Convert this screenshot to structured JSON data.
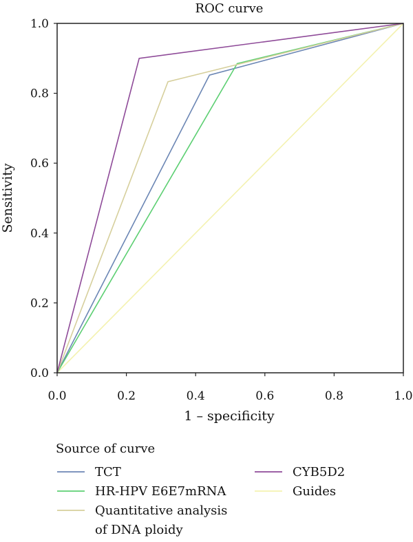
{
  "chart_data": {
    "type": "line",
    "title": "ROC curve",
    "xlabel": "1 – specificity",
    "ylabel": "Sensitivity",
    "xlim": [
      0,
      1
    ],
    "ylim": [
      0,
      1
    ],
    "xticks": [
      "0.0",
      "0.2",
      "0.4",
      "0.6",
      "0.8",
      "1.0"
    ],
    "yticks": [
      "0.0",
      "0.2",
      "0.4",
      "0.6",
      "0.8",
      "1.0"
    ],
    "grid": false,
    "legend": {
      "title": "Source of curve",
      "placement": "bottom"
    },
    "series": [
      {
        "name": "TCT",
        "color": "#6b86b4",
        "x": [
          0,
          0.44,
          1
        ],
        "y": [
          0,
          0.852,
          1
        ]
      },
      {
        "name": "HR-HPV E6E7mRNA",
        "color": "#5ccf72",
        "x": [
          0,
          0.52,
          1
        ],
        "y": [
          0,
          0.885,
          1
        ]
      },
      {
        "name": "Quantitative analysis of DNA ploidy",
        "label_lines": [
          "Quantitative analysis",
          "of DNA ploidy"
        ],
        "color": "#d6cf9c",
        "x": [
          0,
          0.32,
          1
        ],
        "y": [
          0,
          0.833,
          1
        ]
      },
      {
        "name": "CYB5D2",
        "color": "#8e4a98",
        "x": [
          0,
          0.237,
          1
        ],
        "y": [
          0,
          0.9,
          1
        ]
      },
      {
        "name": "Guides",
        "color": "#f4f2b0",
        "x": [
          0,
          1
        ],
        "y": [
          0,
          1
        ]
      }
    ]
  }
}
